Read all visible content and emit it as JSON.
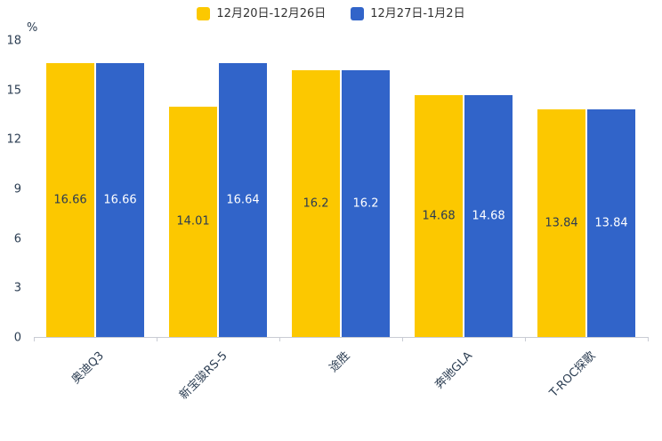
{
  "y_axis": {
    "unit": "%",
    "ticks": [
      0,
      3,
      6,
      9,
      12,
      15,
      18
    ]
  },
  "chart_data": {
    "type": "bar",
    "title": "",
    "categories": [
      "奥迪Q3",
      "新宝骏RS-5",
      "途胜",
      "奔驰GLA",
      "T-ROC探歌"
    ],
    "series": [
      {
        "name": "12月20日-12月26日",
        "color": "#fcc800",
        "label_color": "#2b3b52",
        "values": [
          16.66,
          14.01,
          16.2,
          14.68,
          13.84
        ]
      },
      {
        "name": "12月27日-1月2日",
        "color": "#3164c9",
        "label_color": "#ffffff",
        "values": [
          16.66,
          16.64,
          16.2,
          14.68,
          13.84
        ]
      }
    ],
    "xlabel": "",
    "ylabel": "%",
    "ylim": [
      0,
      18
    ],
    "grid": false,
    "legend_position": "top"
  }
}
